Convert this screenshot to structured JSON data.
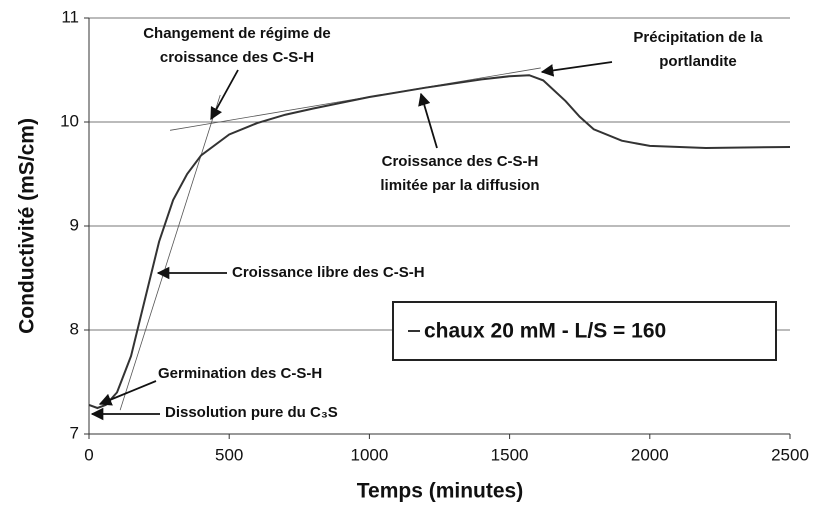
{
  "chart_data": {
    "type": "line",
    "xlabel": "Temps (minutes)",
    "ylabel": "Conductivité (mS/cm)",
    "x": [
      0,
      30,
      60,
      100,
      150,
      200,
      250,
      300,
      350,
      400,
      500,
      600,
      700,
      800,
      1000,
      1200,
      1400,
      1500,
      1570,
      1620,
      1700,
      1750,
      1800,
      1900,
      2000,
      2200,
      2500
    ],
    "series": [
      {
        "name": "chaux 20 mM - L/S = 160",
        "color": "#333333",
        "values": [
          7.28,
          7.25,
          7.28,
          7.4,
          7.75,
          8.3,
          8.85,
          9.25,
          9.5,
          9.68,
          9.88,
          9.99,
          10.07,
          10.13,
          10.24,
          10.33,
          10.41,
          10.44,
          10.45,
          10.4,
          10.2,
          10.05,
          9.93,
          9.82,
          9.77,
          9.75,
          9.76
        ]
      }
    ],
    "tangents": [
      {
        "x": [
          111,
          468
        ],
        "y": [
          7.23,
          10.26
        ]
      },
      {
        "x": [
          289,
          1611
        ],
        "y": [
          9.92,
          10.52
        ]
      }
    ],
    "annotations": [
      {
        "lines": [
          "Changement de régime de",
          "croissance des C-S-H"
        ]
      },
      {
        "lines": [
          "Précipitation de la",
          "portlandite"
        ]
      },
      {
        "lines": [
          "Croissance des C-S-H",
          "limitée par la diffusion"
        ]
      },
      {
        "lines": [
          "Croissance  libre des C-S-H"
        ]
      },
      {
        "lines": [
          "Germination des C-S-H"
        ]
      },
      {
        "lines": [
          "Dissolution pure du C₃S"
        ]
      }
    ],
    "xlim": [
      0,
      2500
    ],
    "xticks": [
      0,
      500,
      1000,
      1500,
      2000,
      2500
    ],
    "ylim": [
      7,
      11
    ],
    "yticks": [
      7,
      8,
      9,
      10,
      11
    ],
    "grid": true,
    "legend": "lower right"
  }
}
